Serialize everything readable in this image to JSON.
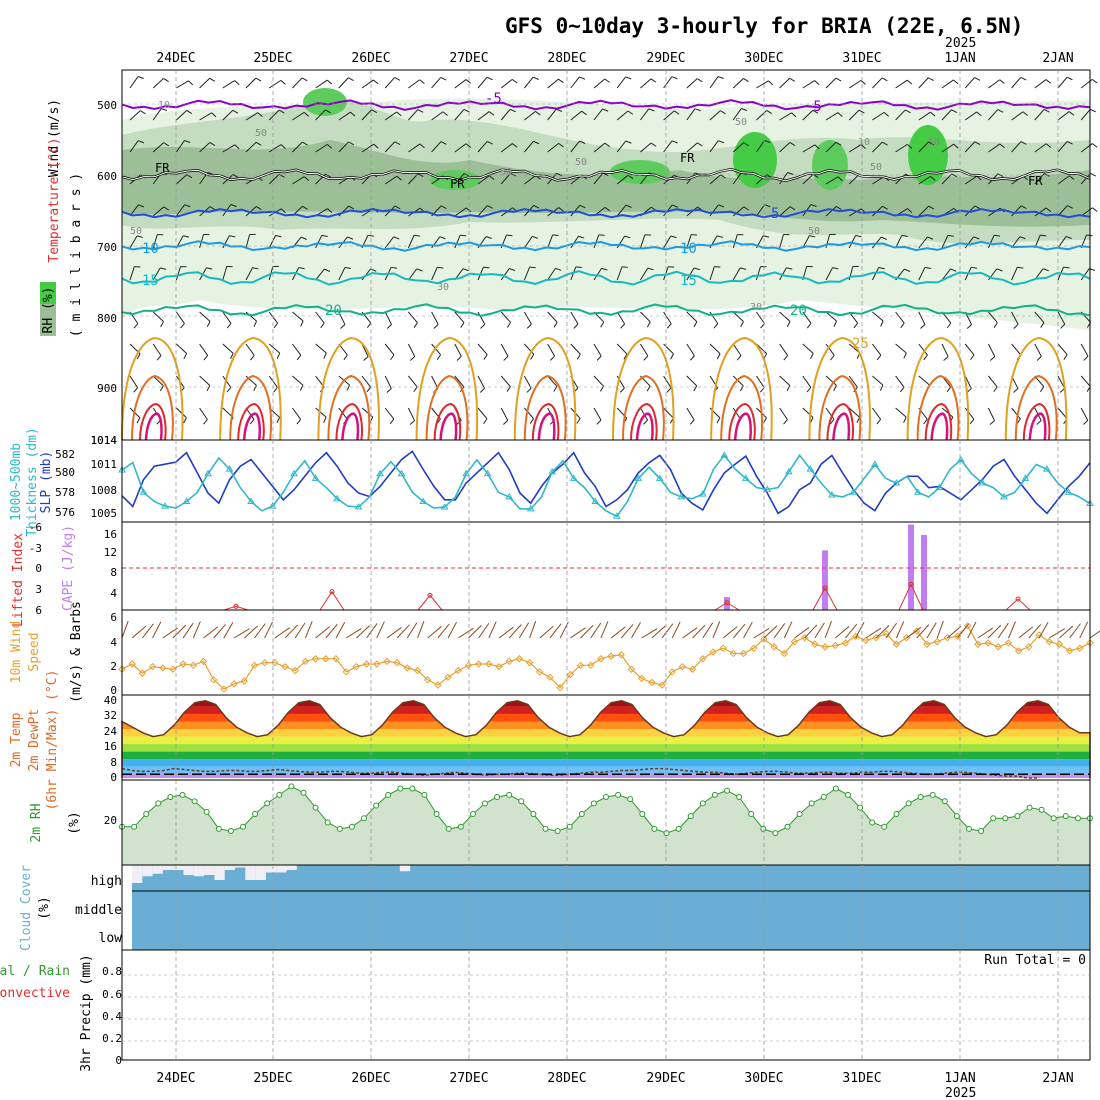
{
  "title": "GFS 0~10day 3-hourly for BRIA (22E, 6.5N)",
  "dates": [
    "24DEC",
    "25DEC",
    "26DEC",
    "27DEC",
    "28DEC",
    "29DEC",
    "30DEC",
    "31DEC",
    "1JAN",
    "2JAN"
  ],
  "year_label": "2025",
  "colors": {
    "grid": "#9a9a9a",
    "rh_light": "#e6f3e3",
    "rh_mid": "#c4dcc0",
    "rh_dark": "#9cbf98",
    "rh_green": "#5dcc5d",
    "t_minus5": "#8a00c8",
    "t_5": "#1f4fd8",
    "t_10": "#1a9be0",
    "t_15": "#18b8c0",
    "t_20": "#13b08a",
    "t_25": "#e0a020",
    "t_30": "#e07020",
    "t_35": "#dd2a2a",
    "t_40": "#d8107a",
    "slp": "#1e3cc8",
    "thickness": "#30b8c8",
    "cape": "#c07ef0",
    "lifted": "#e03030",
    "wind10": "#e8a030",
    "cloud": "#6aaed6",
    "rh2m": "#2f9a2f"
  },
  "panels": {
    "upper": {
      "ylabel": "Wind (m/s)",
      "ylabel_temp": "Temperature (°C)",
      "ylabel_rh": "RH (%)",
      "ylabel_mb": "( m i l l i b a r s )",
      "ticks": [
        "500",
        "600",
        "700",
        "800",
        "900",
        "1014"
      ],
      "freezing": "FR",
      "isotherm_labels": [
        "-5",
        "-5",
        "5",
        "10",
        "10",
        "15",
        "15",
        "20",
        "20",
        "25"
      ],
      "rh_labels": [
        "50",
        "50",
        "50",
        "50",
        "50",
        "50",
        "50",
        "30",
        "30",
        "10",
        "10",
        "50"
      ]
    },
    "slp": {
      "ylabel1": "1000~500mb",
      "ylabel2": "Thickness (dm)",
      "ylabel3": "SLP (mb)",
      "left_ticks": [
        "582",
        "580",
        "578",
        "576"
      ],
      "right_ticks": [
        "1014",
        "1011",
        "1008",
        "1005"
      ]
    },
    "cape": {
      "ylabel1": "Lifted Index",
      "ylabel2": "CAPE (J/kg)",
      "left_ticks": [
        "-6",
        "-3",
        "0",
        "3",
        "6"
      ],
      "right_ticks": [
        "16",
        "12",
        "8",
        "4"
      ]
    },
    "wind": {
      "ylabel1": "10m Wind",
      "ylabel2": "Speed",
      "ylabel3": "(m/s) & Barbs",
      "ticks": [
        "6",
        "4",
        "2",
        "0"
      ]
    },
    "temp2m": {
      "ylabel1": "2m Temp",
      "ylabel2": "2m DewPt",
      "ylabel3": "(6hr Min/Max) (°C)",
      "ticks": [
        "40",
        "32",
        "24",
        "16",
        "8",
        "0"
      ]
    },
    "rh2m": {
      "ylabel1": "2m RH",
      "ylabel2": "(%)",
      "ticks": [
        "20"
      ]
    },
    "cloud": {
      "ylabel1": "Cloud Cover",
      "ylabel2": "(%)",
      "levels": [
        "high",
        "middle",
        "low"
      ]
    },
    "precip": {
      "ylabel1": "3hr Precip (mm)",
      "ylabel2": "Total / Rain",
      "ylabel3": "Convective",
      "ticks": [
        "0.8",
        "0.6",
        "0.4",
        "0.2",
        "0"
      ],
      "run_total": "Run Total = 0"
    }
  },
  "chart_data": [
    {
      "type": "line",
      "title": "SLP (mb) and 1000~500mb Thickness (dm)",
      "x_unit": "3-hourly steps",
      "x_range": [
        "23DEC",
        "2JAN"
      ],
      "series": [
        {
          "name": "SLP (mb)",
          "ylim": [
            1003,
            1014
          ],
          "values": [
            1006.6,
            1005,
            1009,
            1011,
            1011.3,
            1011.6,
            1013,
            1010,
            1007,
            1005.5,
            1009,
            1011,
            1012,
            1010,
            1008,
            1006,
            1007.5,
            1009.5,
            1011.5,
            1013,
            1011,
            1008.5,
            1007,
            1006.5,
            1008,
            1010,
            1012,
            1013.2,
            1010.5,
            1008,
            1006,
            1006,
            1008.5,
            1010,
            1011.5,
            1013,
            1010.5,
            1007,
            1005.5,
            1008,
            1010,
            1011.3,
            1013,
            1010,
            1008,
            1005,
            1006,
            1007.5,
            1010,
            1011.5,
            1012.6,
            1010.5,
            1007,
            1005.5,
            1004.5,
            1007.5,
            1010,
            1011.3,
            1012.5,
            1009.5,
            1007,
            1004,
            1005,
            1007.5,
            1008.5,
            1011.3,
            1012.6,
            1010,
            1007.5,
            1005.5,
            1004.4,
            1007,
            1008.5,
            1009.5,
            1009.5,
            1007.8,
            1008,
            1007,
            1006,
            1007.5,
            1009,
            1011,
            1012,
            1009.5,
            1007.5,
            1005.5,
            1004,
            1006,
            1008,
            1009.5,
            1011.5
          ]
        },
        {
          "name": "1000~500mb Thickness (dm)",
          "ylim": [
            575,
            583
          ],
          "values": [
            580.4,
            581.2,
            578,
            577,
            576.5,
            576.3,
            577,
            578,
            580,
            581.7,
            580.5,
            578.5,
            577,
            576,
            576.5,
            578,
            580,
            581.4,
            579.5,
            578.5,
            577.3,
            576.5,
            576.4,
            577.5,
            580,
            581.3,
            580,
            578,
            577,
            576.3,
            576.4,
            577.5,
            580,
            581.5,
            580,
            578,
            577.5,
            576.2,
            576.2,
            577.5,
            580.2,
            581.4,
            579.5,
            578.5,
            577,
            576,
            575.4,
            577,
            579.5,
            580.7,
            579.5,
            578,
            577.5,
            577.3,
            577.8,
            580.5,
            582,
            580.5,
            579.5,
            578.5,
            578.3,
            578.5,
            580.2,
            582,
            580.5,
            579,
            577.7,
            577.5,
            578,
            579.5,
            581,
            579.5,
            579,
            579.7,
            578,
            577.5,
            578.5,
            580.5,
            581.5,
            580,
            579,
            578.5,
            577.5,
            578,
            579.5,
            581,
            580.5,
            579,
            578,
            577.5,
            576.8
          ]
        }
      ]
    },
    {
      "type": "bar",
      "title": "CAPE (J/kg) and Lifted Index",
      "series": [
        {
          "name": "CAPE (J/kg)",
          "ylim": [
            0,
            17
          ],
          "x": [
            "29DEC 15h",
            "30DEC 15h",
            "31DEC 12h",
            "31DEC 15h"
          ],
          "values": [
            2.5,
            11.5,
            16.5,
            14.5
          ]
        },
        {
          "name": "Lifted Index",
          "ylim": [
            -6,
            6
          ],
          "x": [
            "24DEC 15h",
            "25DEC 15h",
            "26DEC 15h",
            "29DEC 15h",
            "30DEC 15h",
            "31DEC 15h",
            "1JAN 15h"
          ],
          "values": [
            5.5,
            3.5,
            4,
            5,
            3,
            2.5,
            4.5
          ]
        }
      ]
    },
    {
      "type": "line",
      "title": "10m Wind Speed (m/s)",
      "ylim": [
        0,
        6.3
      ],
      "series": [
        {
          "name": "Speed (m/s)",
          "values": [
            1.8,
            2.2,
            1.5,
            2,
            1.9,
            1.8,
            2.2,
            2.1,
            2.4,
            1,
            0.3,
            0.7,
            0.9,
            2.1,
            2.3,
            2.3,
            2,
            1.7,
            2.4,
            2.6,
            2.6,
            2.6,
            1.6,
            2,
            2.2,
            2.2,
            2.4,
            2.3,
            1.9,
            1.7,
            1,
            0.6,
            1.2,
            1.7,
            2.1,
            2.2,
            2.2,
            2,
            2.4,
            2.6,
            2.3,
            1.6,
            1.2,
            0.4,
            1.4,
            2.1,
            2.1,
            2.6,
            2.8,
            2.9,
            1.8,
            1.1,
            0.8,
            0.6,
            1.6,
            2,
            1.8,
            2.6,
            3.1,
            3.4,
            3,
            3,
            3.4,
            4.1,
            3.5,
            3,
            3.9,
            4.2,
            3.7,
            3.5,
            3.6,
            3.8,
            4.3,
            4,
            4.2,
            4.5,
            3.7,
            4.2,
            4.7,
            3.7,
            3.9,
            4.2,
            4.3,
            5.1,
            3.7,
            3.8,
            3.5,
            3.8,
            3.2,
            3.5,
            4.4,
            3.9,
            3.7,
            3.2,
            3.4,
            3.8
          ]
        }
      ]
    },
    {
      "type": "area",
      "title": "2m Temp (6hr Min/Max) (°C)",
      "ylim": [
        -2,
        41
      ],
      "series": [
        {
          "name": "2m Temp",
          "values": [
            28,
            25,
            22,
            20,
            21,
            26,
            33,
            38,
            39,
            37,
            30,
            25,
            22,
            20,
            21,
            26,
            33,
            38,
            39,
            37,
            30,
            25,
            22,
            20,
            21,
            26,
            33,
            38,
            39,
            37,
            30,
            25,
            22,
            20,
            21,
            26,
            33,
            38,
            39,
            37,
            30,
            25,
            22,
            20,
            21,
            26,
            33,
            38,
            39,
            37,
            30,
            25,
            22,
            20,
            21,
            26,
            33,
            38,
            39,
            37,
            30,
            25,
            22,
            20,
            21,
            26,
            33,
            38,
            39,
            37,
            30,
            25,
            22,
            20,
            21,
            26,
            33,
            38,
            39,
            37,
            30,
            25,
            22,
            20,
            21,
            26,
            33,
            38,
            39,
            37,
            30,
            25,
            22,
            22
          ]
        },
        {
          "name": "2m DewPt",
          "values": [
            3,
            2,
            1.5,
            1.5,
            2,
            3,
            2.5,
            2,
            1.5,
            1.5,
            2,
            2,
            1.5,
            1.5,
            2,
            2.5,
            2,
            1.5,
            1,
            1,
            1.5,
            1.5,
            1,
            0.5,
            0.5,
            1,
            1,
            0.5,
            0,
            -0.5,
            0,
            0.5,
            1,
            0.5,
            0,
            -0.5,
            0,
            0,
            0.5,
            0.5,
            0,
            -0.5,
            -0.5,
            0,
            0.5,
            1,
            1,
            1.5,
            2,
            2,
            2.5,
            3,
            3,
            2.5,
            2,
            1.5,
            1,
            1,
            0.5,
            0,
            0.5,
            1,
            1.5,
            1.5,
            1,
            0.5,
            0.5,
            1,
            1,
            0.5,
            0.5,
            1,
            1,
            1.5,
            1.5,
            1,
            0.5,
            0,
            0,
            0.5,
            1,
            1,
            0.5,
            0,
            -0.5,
            -1,
            -1,
            -2,
            -2
          ]
        }
      ]
    },
    {
      "type": "area",
      "title": "2m RH (%)",
      "series": [
        {
          "name": "2m RH (%)",
          "values": [
            18,
            18,
            24,
            29,
            32,
            33,
            30,
            25,
            17,
            16,
            18,
            24,
            29,
            33,
            37,
            34,
            27,
            20,
            17,
            18,
            22,
            28,
            33,
            36,
            36,
            33,
            24,
            17,
            18,
            24,
            29,
            32,
            33,
            30,
            24,
            17,
            16,
            18,
            24,
            29,
            32,
            33,
            31,
            24,
            17,
            15,
            17,
            23,
            29,
            33,
            35,
            32,
            24,
            17,
            15,
            18,
            24,
            29,
            32,
            36,
            33,
            27,
            20,
            18,
            24,
            29,
            32,
            33,
            30,
            23,
            17,
            16,
            22,
            22,
            23,
            27,
            26,
            22,
            23,
            22,
            22
          ]
        }
      ]
    },
    {
      "type": "bar",
      "title": "Cloud Cover (%)",
      "series": [
        {
          "name": "high",
          "values": [
            72,
            45,
            35,
            20,
            20,
            40,
            45,
            40,
            60,
            20,
            10,
            60,
            60,
            30,
            30,
            20,
            0,
            0,
            0,
            0,
            0,
            0,
            0,
            0,
            0,
            0,
            25,
            0,
            0,
            0,
            0,
            0,
            0,
            0,
            0,
            0,
            0,
            0,
            0,
            0,
            0,
            0,
            0,
            0,
            0,
            0,
            0,
            0,
            0,
            0,
            0,
            0,
            0,
            0,
            0,
            0,
            0,
            0,
            0,
            0,
            0,
            0,
            0,
            0,
            0,
            0,
            0,
            0,
            0,
            0,
            0,
            0,
            0,
            0,
            0,
            0,
            0,
            0,
            0,
            0,
            0,
            0,
            0,
            0,
            0,
            0,
            0,
            0,
            0,
            0,
            0,
            0,
            0
          ]
        },
        {
          "name": "middle",
          "values": [
            0,
            0,
            0,
            0,
            0,
            0,
            0,
            0,
            0,
            0,
            0,
            0,
            0,
            0,
            0,
            0,
            0,
            0,
            0,
            0,
            0,
            0,
            0,
            0,
            0,
            0,
            0,
            0,
            0,
            0,
            0,
            0,
            0,
            0,
            0,
            0,
            0,
            0,
            0,
            0,
            0,
            0,
            0,
            0,
            0,
            0,
            0,
            0,
            0,
            0,
            0,
            0,
            0,
            0,
            0,
            0,
            0,
            0,
            0,
            0,
            0,
            0,
            0,
            0,
            0,
            0,
            0,
            0,
            0,
            0,
            0,
            0,
            0,
            0,
            0,
            0,
            0,
            0,
            0,
            0,
            0,
            0,
            0,
            0,
            0,
            0,
            0,
            0,
            0,
            0,
            0,
            0,
            0
          ]
        },
        {
          "name": "low",
          "values": [
            0,
            0,
            0,
            0,
            0,
            0,
            0,
            0,
            0,
            0,
            0,
            0,
            0,
            0,
            0,
            0,
            0,
            0,
            0,
            0,
            0,
            0,
            0,
            0,
            0,
            0,
            0,
            0,
            0,
            0,
            0,
            0,
            0,
            0,
            0,
            0,
            0,
            0,
            0,
            0,
            0,
            0,
            0,
            0,
            0,
            0,
            0,
            0,
            0,
            0,
            0,
            0,
            0,
            0,
            0,
            0,
            0,
            0,
            0,
            0,
            0,
            0,
            0,
            0,
            0,
            0,
            0,
            0,
            0,
            0,
            0,
            0,
            0,
            0,
            0,
            0,
            0,
            0,
            0,
            0,
            0,
            0,
            0,
            0,
            0,
            0,
            0,
            0,
            0,
            0,
            0,
            0,
            0
          ]
        }
      ]
    },
    {
      "type": "bar",
      "title": "3hr Precip (mm)",
      "ylim": [
        0,
        0.9
      ],
      "series": [
        {
          "name": "Total / Rain",
          "values": []
        },
        {
          "name": "Convective",
          "values": []
        }
      ]
    }
  ]
}
